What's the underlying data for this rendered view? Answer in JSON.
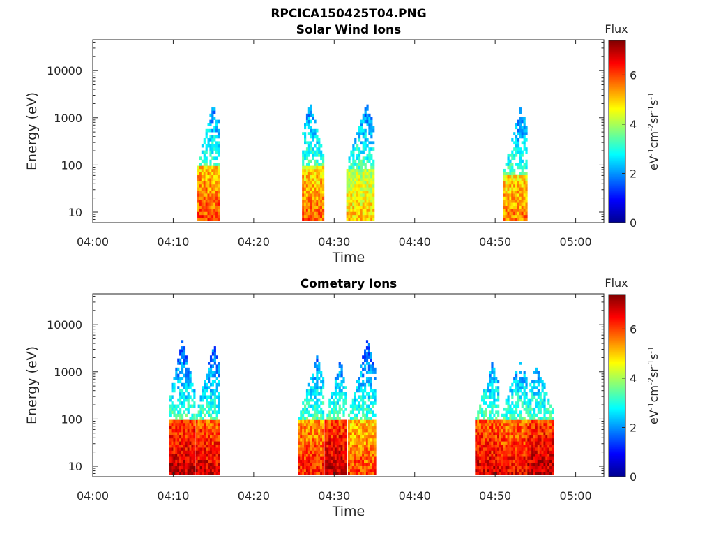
{
  "figure_title": "RPCICA150425T04.PNG",
  "chart_data": [
    {
      "type": "heatmap",
      "title": "Solar Wind Ions",
      "xlabel": "Time",
      "ylabel": "Energy (eV)",
      "x_ticks": [
        "04:00",
        "04:10",
        "04:20",
        "04:30",
        "04:40",
        "04:50",
        "05:00"
      ],
      "x_range_minutes": [
        0,
        63.5
      ],
      "y_scale": "log",
      "y_ticks": [
        10,
        100,
        1000,
        10000
      ],
      "y_tick_labels": [
        "10",
        "100",
        "1000",
        "10000"
      ],
      "y_range": [
        6,
        45000
      ],
      "colorbar": {
        "title": "Flux",
        "label": "eV-1cm-2sr-1s-1",
        "range": [
          0,
          7.4
        ],
        "ticks": [
          0,
          2,
          4,
          6
        ]
      },
      "bursts": [
        {
          "t0": 13.0,
          "t1": 15.7,
          "peak_flux": 6.0,
          "core_emax": 90,
          "emax": 2000,
          "skew": "right",
          "note": "04:13-04:15"
        },
        {
          "t0": 26.0,
          "t1": 28.6,
          "peak_flux": 5.8,
          "core_emax": 90,
          "emax": 2200,
          "skew": "left",
          "note": "04:26-04:28"
        },
        {
          "t0": 31.5,
          "t1": 35.0,
          "peak_flux": 5.0,
          "core_emax": 80,
          "emax": 2000,
          "skew": "right",
          "note": "04:32-04:34"
        },
        {
          "t0": 51.0,
          "t1": 54.0,
          "peak_flux": 5.6,
          "core_emax": 60,
          "emax": 1700,
          "skew": "right",
          "note": "04:51-04:54"
        }
      ]
    },
    {
      "type": "heatmap",
      "title": "Cometary Ions",
      "xlabel": "Time",
      "ylabel": "Energy (eV)",
      "x_ticks": [
        "04:00",
        "04:10",
        "04:20",
        "04:30",
        "04:40",
        "04:50",
        "05:00"
      ],
      "x_range_minutes": [
        0,
        63.5
      ],
      "y_scale": "log",
      "y_ticks": [
        10,
        100,
        1000,
        10000
      ],
      "y_tick_labels": [
        "10",
        "100",
        "1000",
        "10000"
      ],
      "y_range": [
        6,
        45000
      ],
      "colorbar": {
        "title": "Flux",
        "label": "eV-1cm-2sr-1s-1",
        "range": [
          0,
          7.4
        ],
        "ticks": [
          0,
          2,
          4,
          6
        ]
      },
      "bursts": [
        {
          "t0": 9.5,
          "t1": 12.6,
          "peak_flux": 7.0,
          "core_emax": 90,
          "emax": 4500,
          "skew": "center",
          "note": "04:09-04:12"
        },
        {
          "t0": 12.8,
          "t1": 15.8,
          "peak_flux": 6.8,
          "core_emax": 90,
          "emax": 4500,
          "skew": "right",
          "note": "04:13-04:15"
        },
        {
          "t0": 25.5,
          "t1": 28.7,
          "peak_flux": 6.3,
          "core_emax": 90,
          "emax": 2000,
          "skew": "right",
          "note": "04:26-04:28"
        },
        {
          "t0": 28.8,
          "t1": 31.5,
          "peak_flux": 7.0,
          "core_emax": 90,
          "emax": 2000,
          "skew": "right",
          "note": "04:29-04:31"
        },
        {
          "t0": 31.7,
          "t1": 35.0,
          "peak_flux": 6.0,
          "core_emax": 90,
          "emax": 5000,
          "skew": "right",
          "note": "04:32-04:34"
        },
        {
          "t0": 47.5,
          "t1": 50.4,
          "peak_flux": 6.8,
          "core_emax": 90,
          "emax": 1500,
          "skew": "right",
          "note": "04:48-04:50"
        },
        {
          "t0": 50.5,
          "t1": 54.0,
          "peak_flux": 6.6,
          "core_emax": 90,
          "emax": 1700,
          "skew": "right",
          "note": "04:51-04:54"
        },
        {
          "t0": 54.0,
          "t1": 57.2,
          "peak_flux": 7.0,
          "core_emax": 90,
          "emax": 1400,
          "skew": "left",
          "note": "04:54-04:57"
        }
      ]
    }
  ]
}
